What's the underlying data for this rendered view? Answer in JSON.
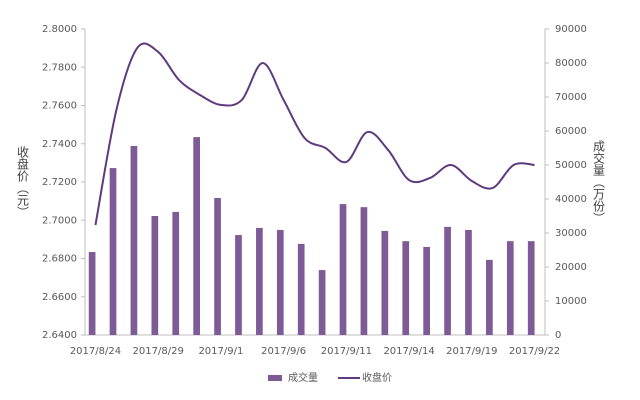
{
  "chart_data": {
    "type": "bar_line",
    "categories": [
      "2017/8/24",
      null,
      null,
      "2017/8/29",
      null,
      null,
      "2017/9/1",
      null,
      null,
      "2017/9/6",
      null,
      null,
      "2017/9/11",
      null,
      null,
      "2017/9/14",
      null,
      null,
      "2017/9/19",
      null,
      null,
      "2017/9/22"
    ],
    "y_label": "收盘价（元）",
    "y2_label": "成交量（万份）",
    "ylim": [
      2.64,
      2.8
    ],
    "yticks": [
      {
        "value": 2.64,
        "label": "2.6400"
      },
      {
        "value": 2.66,
        "label": "2.6600"
      },
      {
        "value": 2.68,
        "label": "2.6800"
      },
      {
        "value": 2.7,
        "label": "2.7000"
      },
      {
        "value": 2.72,
        "label": "2.7200"
      },
      {
        "value": 2.74,
        "label": "2.7400"
      },
      {
        "value": 2.76,
        "label": "2.7600"
      },
      {
        "value": 2.78,
        "label": "2.7800"
      },
      {
        "value": 2.8,
        "label": "2.8000"
      }
    ],
    "y2lim": [
      0,
      90000
    ],
    "y2ticks": [
      0,
      10000,
      20000,
      30000,
      40000,
      50000,
      60000,
      70000,
      80000,
      90000
    ],
    "series": [
      {
        "name": "成交量",
        "type": "bar",
        "axis": "y2",
        "color": "#7e5a96",
        "values": [
          24400,
          49100,
          55600,
          35000,
          36200,
          58200,
          40300,
          29400,
          31500,
          30900,
          26800,
          19100,
          38500,
          37600,
          30600,
          27600,
          25900,
          31800,
          30900,
          22100,
          27600,
          27600
        ]
      },
      {
        "name": "收盘价",
        "type": "line",
        "axis": "y",
        "color": "#5e3a7e",
        "values": [
          2.6975,
          2.7576,
          2.7901,
          2.788,
          2.7733,
          2.7655,
          2.7603,
          2.7629,
          2.7822,
          2.7629,
          2.743,
          2.7378,
          2.7305,
          2.7461,
          2.7367,
          2.721,
          2.7221,
          2.7289,
          2.7205,
          2.7169,
          2.7289,
          2.7289
        ]
      }
    ],
    "legend": "bottom"
  }
}
